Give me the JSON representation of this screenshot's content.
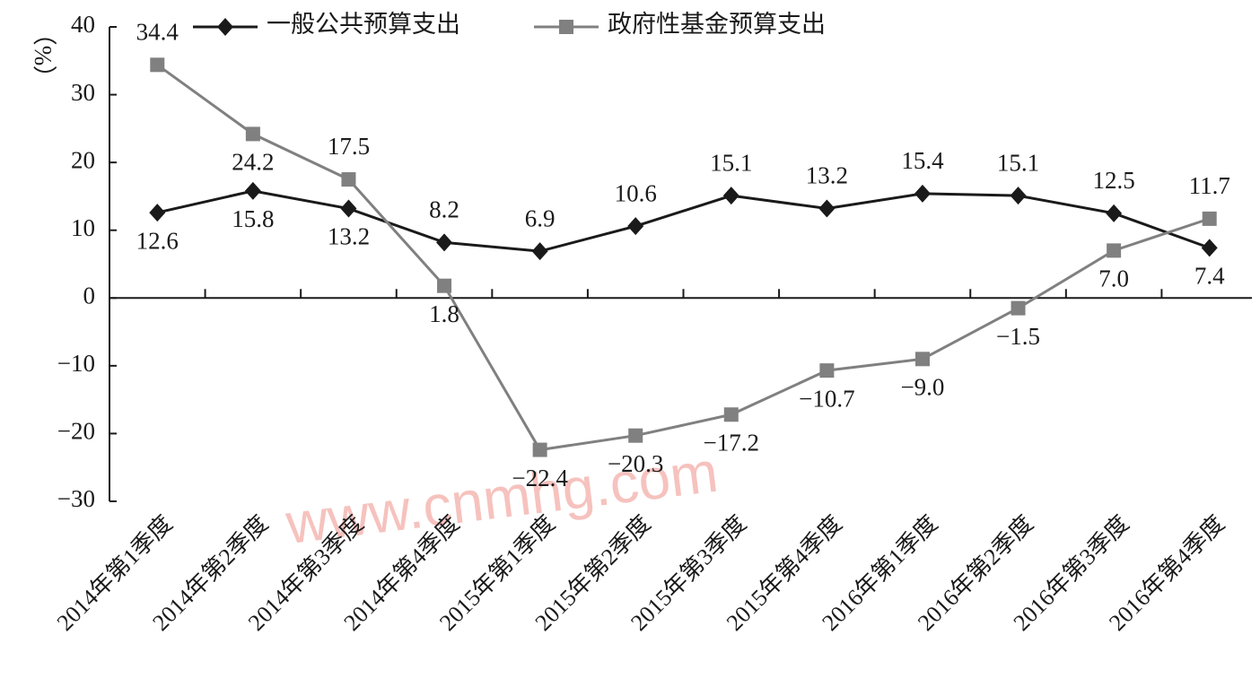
{
  "chart_data": {
    "type": "line",
    "y_label": "（%）",
    "watermark": "www.cnmhg.com",
    "categories": [
      "2014年第1季度",
      "2014年第2季度",
      "2014年第3季度",
      "2014年第4季度",
      "2015年第1季度",
      "2015年第2季度",
      "2015年第3季度",
      "2015年第4季度",
      "2016年第1季度",
      "2016年第2季度",
      "2016年第3季度",
      "2016年第4季度"
    ],
    "series": [
      {
        "name": "一般公共预算支出",
        "color": "#1a1a1a",
        "marker": "diamond",
        "values": [
          12.6,
          15.8,
          13.2,
          8.2,
          6.9,
          10.6,
          15.1,
          13.2,
          15.4,
          15.1,
          12.5,
          7.4
        ],
        "value_labels": [
          "12.6",
          "15.8",
          "13.2",
          "8.2",
          "6.9",
          "10.6",
          "15.1",
          "13.2",
          "15.4",
          "15.1",
          "12.5",
          "7.4"
        ]
      },
      {
        "name": "政府性基金预算支出",
        "color": "#808080",
        "marker": "square",
        "values": [
          34.4,
          24.2,
          17.5,
          1.8,
          -22.4,
          -20.3,
          -17.2,
          -10.7,
          -9.0,
          -1.5,
          7.0,
          11.7
        ],
        "value_labels": [
          "34.4",
          "24.2",
          "17.5",
          "1.8",
          "−22.4",
          "−20.3",
          "−17.2",
          "−10.7",
          "−9.0",
          "−1.5",
          "7.0",
          "11.7"
        ]
      }
    ],
    "ylim": [
      -30,
      40
    ],
    "yticks": [
      {
        "value": -30,
        "label": "−30"
      },
      {
        "value": -20,
        "label": "−20"
      },
      {
        "value": -10,
        "label": "−10"
      },
      0,
      10,
      20,
      30,
      40
    ],
    "legend": "top",
    "grid": false
  }
}
